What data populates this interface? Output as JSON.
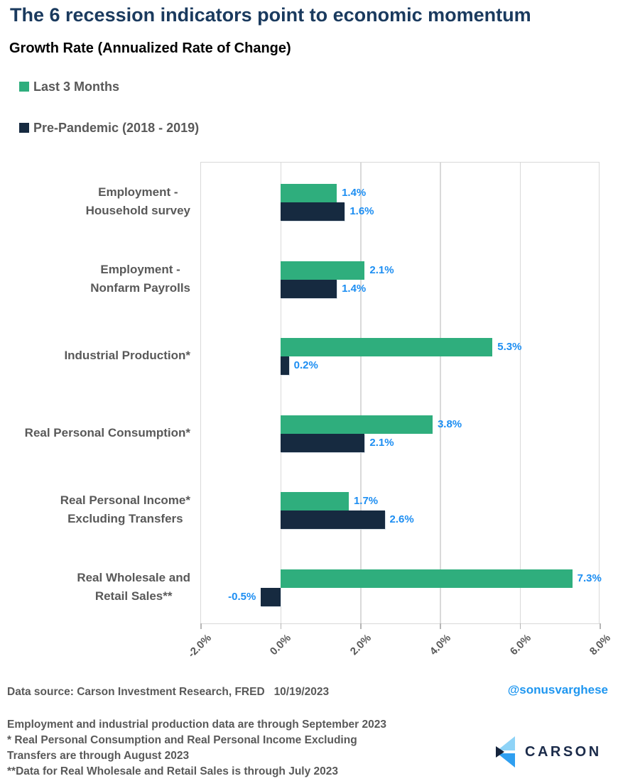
{
  "title": "The 6 recession indicators point to economic momentum",
  "subtitle": "Growth Rate (Annualized Rate of Change)",
  "legend": [
    {
      "label": "Last 3 Months",
      "color": "#2fae7d"
    },
    {
      "label": "Pre-Pandemic (2018 - 2019)",
      "color": "#162a40"
    }
  ],
  "chart_data": {
    "type": "bar",
    "orientation": "horizontal",
    "categories": [
      [
        "Employment -",
        "Household survey"
      ],
      [
        "Employment -",
        "Nonfarm Payrolls"
      ],
      [
        "Industrial Production*"
      ],
      [
        "Real Personal Consumption*"
      ],
      [
        "Real Personal Income*",
        "Excluding Transfers"
      ],
      [
        "Real Wholesale and",
        "Retail Sales**"
      ]
    ],
    "series": [
      {
        "name": "Last 3 Months",
        "color": "#2fae7d",
        "values": [
          1.4,
          2.1,
          5.3,
          3.8,
          1.7,
          7.3
        ],
        "labels": [
          "1.4%",
          "2.1%",
          "5.3%",
          "3.8%",
          "1.7%",
          "7.3%"
        ]
      },
      {
        "name": "Pre-Pandemic (2018 - 2019)",
        "color": "#162a40",
        "values": [
          1.6,
          1.4,
          0.2,
          2.1,
          2.6,
          -0.5
        ],
        "labels": [
          "1.6%",
          "1.4%",
          "0.2%",
          "2.1%",
          "2.6%",
          "-0.5%"
        ]
      }
    ],
    "xlim": [
      -2,
      8
    ],
    "x_ticks": [
      {
        "value": -2,
        "label": "-2.0%"
      },
      {
        "value": 0,
        "label": "0.0%"
      },
      {
        "value": 2,
        "label": "2.0%"
      },
      {
        "value": 4,
        "label": "4.0%"
      },
      {
        "value": 6,
        "label": "6.0%"
      },
      {
        "value": 8,
        "label": "8.0%"
      }
    ],
    "grid": true,
    "legend_position": "top-left",
    "value_label_color": "#1d8ef2"
  },
  "footer": {
    "source": "Data source: Carson Investment Research, FRED   10/19/2023",
    "handle": "@sonusvarghese",
    "notes": [
      "Employment and industrial production data are through September 2023",
      "* Real Personal Consumption and Real Personal Income Excluding",
      "Transfers are through August 2023",
      "**Data for Real Wholesale and Retail Sales is through July 2023"
    ],
    "brand": "CARSON"
  },
  "colors": {
    "title": "#1a3a5e",
    "text_gray": "#595959",
    "gridline": "#d9d9d9",
    "logo_light_blue": "#8ed3f7",
    "logo_blue": "#2f9ff0",
    "logo_dark": "#16243c"
  }
}
